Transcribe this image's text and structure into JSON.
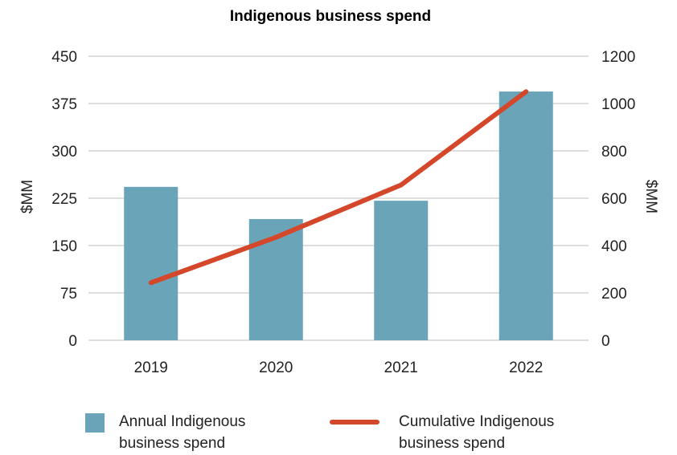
{
  "chart_data": {
    "type": "bar",
    "title": "Indigenous business spend",
    "categories": [
      "2019",
      "2020",
      "2021",
      "2022"
    ],
    "series": [
      {
        "name": "Annual Indigenous business spend",
        "type": "bar",
        "axis": "left",
        "values": [
          243,
          192,
          221,
          394
        ],
        "color": "#6aa4b8"
      },
      {
        "name": "Cumulative Indigenous business spend",
        "type": "line",
        "axis": "right",
        "values": [
          243,
          435,
          656,
          1050
        ],
        "color": "#d4472a"
      }
    ],
    "y_left": {
      "label": "$MM",
      "ylim": [
        0,
        450
      ],
      "ticks": [
        "0",
        "75",
        "150",
        "225",
        "300",
        "375",
        "450"
      ]
    },
    "y_right": {
      "label": "$MM",
      "ylim": [
        0,
        1200
      ],
      "ticks": [
        "0",
        "200",
        "400",
        "600",
        "800",
        "1000",
        "1200"
      ]
    },
    "grid": true,
    "legend_position": "bottom"
  },
  "legend": {
    "bar_label_line1": "Annual Indigenous",
    "bar_label_line2": "business spend",
    "line_label_line1": "Cumulative Indigenous",
    "line_label_line2": "business spend"
  }
}
